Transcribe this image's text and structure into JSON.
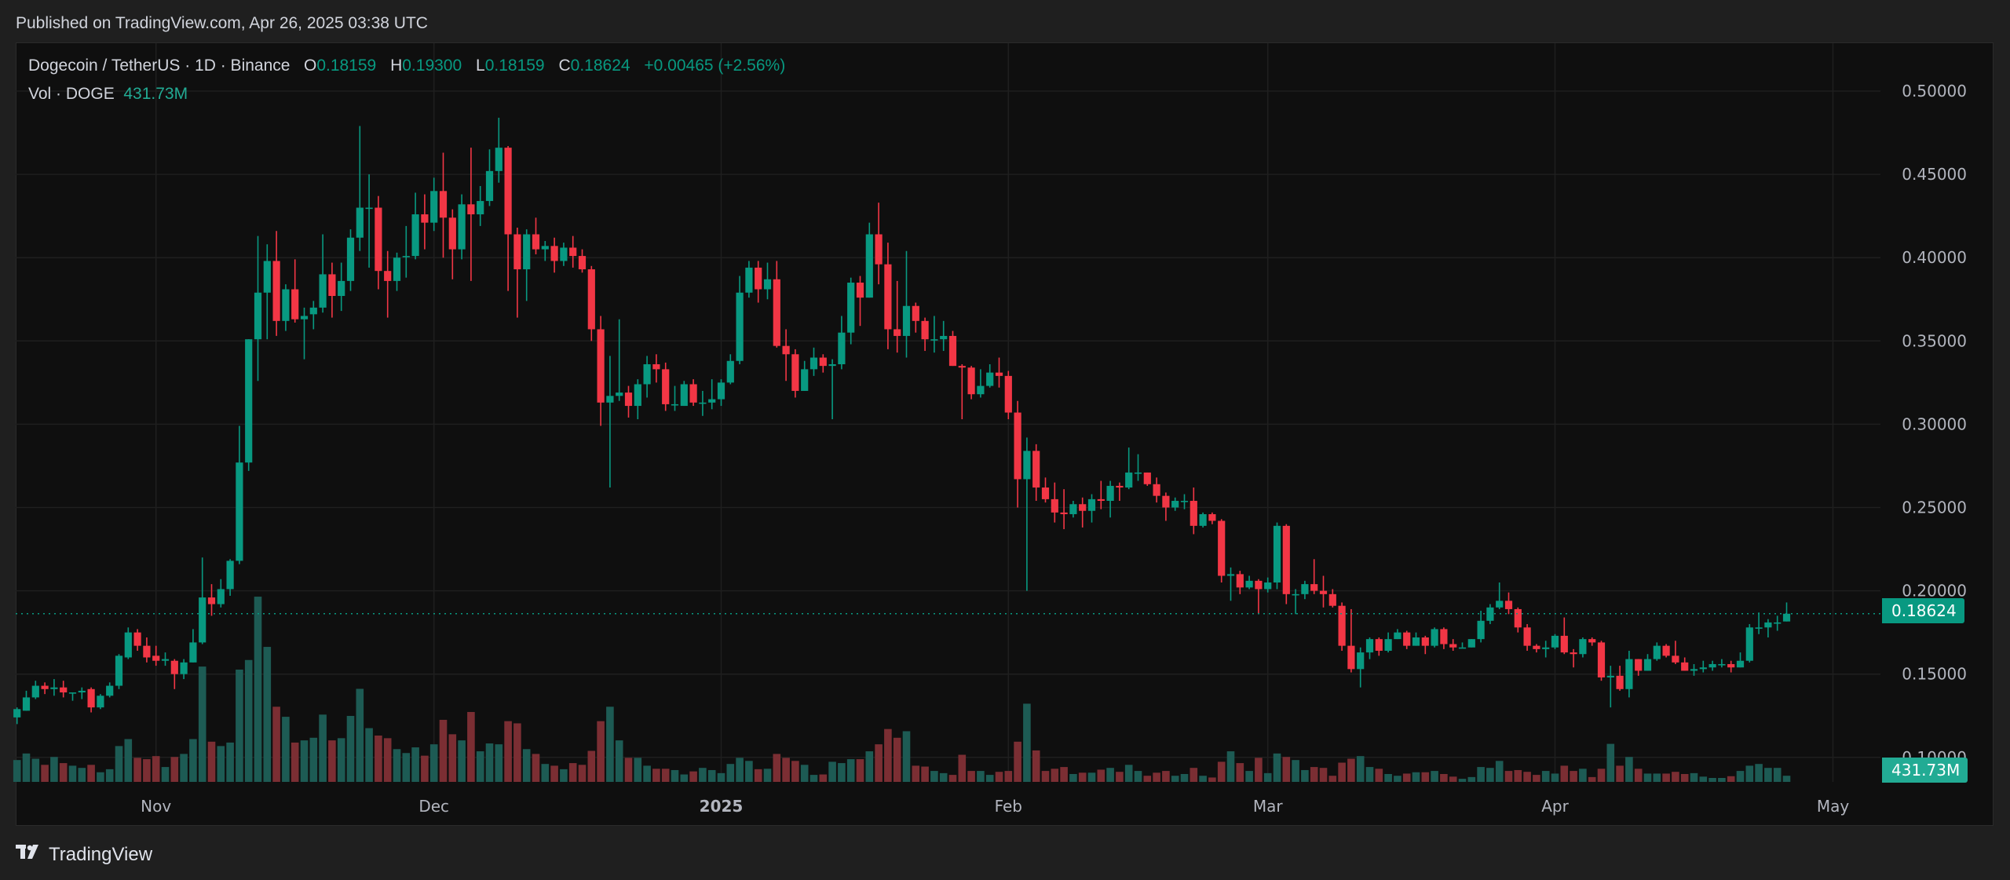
{
  "header": {
    "published": "Published on TradingView.com, Apr 26, 2025 03:38 UTC"
  },
  "legend": {
    "symbol": "Dogecoin / TetherUS · 1D · Binance",
    "o_label": "O",
    "o_value": "0.18159",
    "h_label": "H",
    "h_value": "0.19300",
    "l_label": "L",
    "l_value": "0.18159",
    "c_label": "C",
    "c_value": "0.18624",
    "change": "+0.00465 (+2.56%)",
    "vol_label": "Vol · DOGE",
    "vol_value": "431.73M"
  },
  "badges": {
    "price": "0.18624",
    "volume": "431.73M"
  },
  "footer": {
    "brand": "TradingView",
    "logo_text": "TV"
  },
  "colors": {
    "up": "#089981",
    "down": "#f23645",
    "vol_up": "#1d5b54",
    "vol_down": "#7b2e33",
    "background": "#0f0f0f",
    "grid": "#1f1f1f",
    "last_price_line": "#089981"
  },
  "chart_data": {
    "type": "candlestick",
    "title": "Dogecoin / TetherUS · 1D · Binance",
    "ylim": [
      0.1,
      0.5
    ],
    "grid": true,
    "y_ticks": [
      "0.50000",
      "0.45000",
      "0.40000",
      "0.35000",
      "0.30000",
      "0.25000",
      "0.20000",
      "0.15000",
      "0.10000"
    ],
    "x_ticks": [
      {
        "label": "Nov",
        "index": 15
      },
      {
        "label": "Dec",
        "index": 45
      },
      {
        "label": "2025",
        "index": 76
      },
      {
        "label": "Feb",
        "index": 107
      },
      {
        "label": "Mar",
        "index": 135
      },
      {
        "label": "Apr",
        "index": 166
      },
      {
        "label": "May",
        "index": 196
      }
    ],
    "last_price": 0.18624,
    "ohlc_columns": [
      "open",
      "high",
      "low",
      "close"
    ],
    "ohlc": [
      [
        0.124,
        0.13,
        0.12,
        0.129
      ],
      [
        0.128,
        0.14,
        0.128,
        0.136
      ],
      [
        0.136,
        0.146,
        0.135,
        0.143
      ],
      [
        0.143,
        0.145,
        0.138,
        0.141
      ],
      [
        0.141,
        0.147,
        0.137,
        0.142
      ],
      [
        0.142,
        0.146,
        0.136,
        0.139
      ],
      [
        0.139,
        0.139,
        0.134,
        0.139
      ],
      [
        0.139,
        0.142,
        0.135,
        0.14
      ],
      [
        0.141,
        0.142,
        0.127,
        0.13
      ],
      [
        0.13,
        0.138,
        0.129,
        0.137
      ],
      [
        0.137,
        0.145,
        0.136,
        0.143
      ],
      [
        0.143,
        0.162,
        0.141,
        0.161
      ],
      [
        0.16,
        0.178,
        0.159,
        0.175
      ],
      [
        0.175,
        0.177,
        0.164,
        0.167
      ],
      [
        0.167,
        0.172,
        0.157,
        0.16
      ],
      [
        0.161,
        0.167,
        0.155,
        0.158
      ],
      [
        0.158,
        0.163,
        0.155,
        0.159
      ],
      [
        0.158,
        0.159,
        0.141,
        0.15
      ],
      [
        0.15,
        0.159,
        0.147,
        0.157
      ],
      [
        0.157,
        0.177,
        0.157,
        0.169
      ],
      [
        0.169,
        0.22,
        0.168,
        0.196
      ],
      [
        0.196,
        0.204,
        0.185,
        0.192
      ],
      [
        0.192,
        0.207,
        0.19,
        0.201
      ],
      [
        0.201,
        0.219,
        0.197,
        0.218
      ],
      [
        0.218,
        0.299,
        0.216,
        0.277
      ],
      [
        0.277,
        0.351,
        0.272,
        0.351
      ],
      [
        0.351,
        0.413,
        0.326,
        0.379
      ],
      [
        0.379,
        0.408,
        0.351,
        0.398
      ],
      [
        0.398,
        0.416,
        0.353,
        0.362
      ],
      [
        0.362,
        0.384,
        0.356,
        0.381
      ],
      [
        0.381,
        0.399,
        0.361,
        0.363
      ],
      [
        0.363,
        0.37,
        0.339,
        0.365
      ],
      [
        0.366,
        0.374,
        0.357,
        0.37
      ],
      [
        0.37,
        0.414,
        0.367,
        0.39
      ],
      [
        0.39,
        0.397,
        0.364,
        0.377
      ],
      [
        0.377,
        0.397,
        0.368,
        0.386
      ],
      [
        0.386,
        0.417,
        0.38,
        0.412
      ],
      [
        0.412,
        0.479,
        0.404,
        0.43
      ],
      [
        0.43,
        0.45,
        0.394,
        0.43
      ],
      [
        0.43,
        0.437,
        0.381,
        0.392
      ],
      [
        0.392,
        0.404,
        0.364,
        0.386
      ],
      [
        0.386,
        0.403,
        0.38,
        0.4
      ],
      [
        0.401,
        0.419,
        0.388,
        0.401
      ],
      [
        0.401,
        0.439,
        0.399,
        0.426
      ],
      [
        0.426,
        0.438,
        0.405,
        0.421
      ],
      [
        0.421,
        0.448,
        0.416,
        0.44
      ],
      [
        0.44,
        0.463,
        0.4,
        0.424
      ],
      [
        0.424,
        0.429,
        0.387,
        0.405
      ],
      [
        0.405,
        0.438,
        0.399,
        0.432
      ],
      [
        0.432,
        0.466,
        0.386,
        0.426
      ],
      [
        0.426,
        0.443,
        0.419,
        0.434
      ],
      [
        0.434,
        0.465,
        0.431,
        0.452
      ],
      [
        0.452,
        0.484,
        0.445,
        0.466
      ],
      [
        0.466,
        0.467,
        0.38,
        0.414
      ],
      [
        0.414,
        0.418,
        0.364,
        0.393
      ],
      [
        0.393,
        0.417,
        0.374,
        0.414
      ],
      [
        0.414,
        0.424,
        0.402,
        0.405
      ],
      [
        0.405,
        0.41,
        0.398,
        0.407
      ],
      [
        0.407,
        0.412,
        0.391,
        0.398
      ],
      [
        0.398,
        0.409,
        0.395,
        0.406
      ],
      [
        0.406,
        0.413,
        0.394,
        0.401
      ],
      [
        0.401,
        0.405,
        0.391,
        0.393
      ],
      [
        0.393,
        0.395,
        0.35,
        0.357
      ],
      [
        0.357,
        0.365,
        0.299,
        0.313
      ],
      [
        0.313,
        0.341,
        0.262,
        0.317
      ],
      [
        0.317,
        0.363,
        0.314,
        0.319
      ],
      [
        0.319,
        0.323,
        0.304,
        0.311
      ],
      [
        0.311,
        0.327,
        0.303,
        0.324
      ],
      [
        0.324,
        0.341,
        0.316,
        0.336
      ],
      [
        0.336,
        0.342,
        0.325,
        0.333
      ],
      [
        0.333,
        0.337,
        0.308,
        0.312
      ],
      [
        0.312,
        0.323,
        0.308,
        0.312
      ],
      [
        0.311,
        0.326,
        0.311,
        0.324
      ],
      [
        0.324,
        0.327,
        0.311,
        0.313
      ],
      [
        0.313,
        0.32,
        0.305,
        0.313
      ],
      [
        0.313,
        0.327,
        0.309,
        0.315
      ],
      [
        0.315,
        0.327,
        0.311,
        0.325
      ],
      [
        0.325,
        0.342,
        0.324,
        0.338
      ],
      [
        0.338,
        0.389,
        0.336,
        0.379
      ],
      [
        0.379,
        0.398,
        0.376,
        0.394
      ],
      [
        0.394,
        0.398,
        0.373,
        0.381
      ],
      [
        0.381,
        0.397,
        0.375,
        0.387
      ],
      [
        0.387,
        0.398,
        0.346,
        0.347
      ],
      [
        0.347,
        0.357,
        0.326,
        0.342
      ],
      [
        0.342,
        0.345,
        0.316,
        0.32
      ],
      [
        0.32,
        0.338,
        0.32,
        0.333
      ],
      [
        0.333,
        0.346,
        0.329,
        0.34
      ],
      [
        0.34,
        0.342,
        0.331,
        0.335
      ],
      [
        0.335,
        0.339,
        0.303,
        0.336
      ],
      [
        0.336,
        0.365,
        0.333,
        0.355
      ],
      [
        0.355,
        0.388,
        0.348,
        0.385
      ],
      [
        0.385,
        0.389,
        0.359,
        0.376
      ],
      [
        0.376,
        0.421,
        0.376,
        0.414
      ],
      [
        0.414,
        0.433,
        0.384,
        0.396
      ],
      [
        0.396,
        0.409,
        0.345,
        0.357
      ],
      [
        0.357,
        0.386,
        0.343,
        0.353
      ],
      [
        0.353,
        0.404,
        0.34,
        0.371
      ],
      [
        0.371,
        0.373,
        0.355,
        0.362
      ],
      [
        0.362,
        0.364,
        0.344,
        0.351
      ],
      [
        0.351,
        0.365,
        0.343,
        0.351
      ],
      [
        0.351,
        0.362,
        0.344,
        0.353
      ],
      [
        0.353,
        0.356,
        0.335,
        0.335
      ],
      [
        0.335,
        0.336,
        0.303,
        0.334
      ],
      [
        0.334,
        0.335,
        0.315,
        0.318
      ],
      [
        0.318,
        0.333,
        0.316,
        0.323
      ],
      [
        0.323,
        0.336,
        0.322,
        0.331
      ],
      [
        0.331,
        0.34,
        0.322,
        0.329
      ],
      [
        0.329,
        0.332,
        0.303,
        0.307
      ],
      [
        0.307,
        0.314,
        0.25,
        0.267
      ],
      [
        0.267,
        0.292,
        0.2,
        0.284
      ],
      [
        0.284,
        0.288,
        0.254,
        0.262
      ],
      [
        0.262,
        0.268,
        0.253,
        0.255
      ],
      [
        0.255,
        0.265,
        0.241,
        0.247
      ],
      [
        0.247,
        0.261,
        0.237,
        0.246
      ],
      [
        0.246,
        0.254,
        0.244,
        0.252
      ],
      [
        0.252,
        0.256,
        0.238,
        0.248
      ],
      [
        0.248,
        0.258,
        0.241,
        0.255
      ],
      [
        0.255,
        0.266,
        0.249,
        0.254
      ],
      [
        0.254,
        0.266,
        0.244,
        0.263
      ],
      [
        0.263,
        0.265,
        0.254,
        0.262
      ],
      [
        0.262,
        0.286,
        0.261,
        0.271
      ],
      [
        0.271,
        0.282,
        0.266,
        0.271
      ],
      [
        0.271,
        0.271,
        0.263,
        0.264
      ],
      [
        0.264,
        0.268,
        0.253,
        0.257
      ],
      [
        0.257,
        0.259,
        0.242,
        0.25
      ],
      [
        0.25,
        0.256,
        0.248,
        0.254
      ],
      [
        0.254,
        0.258,
        0.249,
        0.254
      ],
      [
        0.254,
        0.262,
        0.234,
        0.239
      ],
      [
        0.239,
        0.247,
        0.238,
        0.246
      ],
      [
        0.246,
        0.247,
        0.24,
        0.242
      ],
      [
        0.242,
        0.243,
        0.205,
        0.209
      ],
      [
        0.209,
        0.214,
        0.194,
        0.21
      ],
      [
        0.21,
        0.212,
        0.198,
        0.202
      ],
      [
        0.202,
        0.209,
        0.201,
        0.206
      ],
      [
        0.206,
        0.207,
        0.186,
        0.201
      ],
      [
        0.201,
        0.208,
        0.199,
        0.205
      ],
      [
        0.205,
        0.241,
        0.201,
        0.239
      ],
      [
        0.239,
        0.24,
        0.192,
        0.198
      ],
      [
        0.198,
        0.201,
        0.186,
        0.198
      ],
      [
        0.198,
        0.206,
        0.195,
        0.204
      ],
      [
        0.204,
        0.219,
        0.198,
        0.2
      ],
      [
        0.2,
        0.209,
        0.19,
        0.198
      ],
      [
        0.198,
        0.201,
        0.19,
        0.191
      ],
      [
        0.191,
        0.193,
        0.164,
        0.167
      ],
      [
        0.167,
        0.189,
        0.151,
        0.153
      ],
      [
        0.153,
        0.166,
        0.142,
        0.163
      ],
      [
        0.163,
        0.172,
        0.159,
        0.171
      ],
      [
        0.171,
        0.172,
        0.161,
        0.164
      ],
      [
        0.164,
        0.175,
        0.163,
        0.171
      ],
      [
        0.171,
        0.177,
        0.171,
        0.175
      ],
      [
        0.175,
        0.176,
        0.165,
        0.167
      ],
      [
        0.167,
        0.175,
        0.167,
        0.172
      ],
      [
        0.172,
        0.173,
        0.162,
        0.167
      ],
      [
        0.167,
        0.178,
        0.166,
        0.177
      ],
      [
        0.177,
        0.178,
        0.165,
        0.168
      ],
      [
        0.168,
        0.171,
        0.164,
        0.166
      ],
      [
        0.166,
        0.169,
        0.166,
        0.166
      ],
      [
        0.166,
        0.171,
        0.166,
        0.171
      ],
      [
        0.171,
        0.188,
        0.169,
        0.182
      ],
      [
        0.182,
        0.192,
        0.18,
        0.19
      ],
      [
        0.19,
        0.205,
        0.189,
        0.194
      ],
      [
        0.194,
        0.199,
        0.186,
        0.189
      ],
      [
        0.189,
        0.19,
        0.175,
        0.178
      ],
      [
        0.178,
        0.18,
        0.164,
        0.167
      ],
      [
        0.167,
        0.168,
        0.163,
        0.165
      ],
      [
        0.165,
        0.17,
        0.16,
        0.166
      ],
      [
        0.166,
        0.174,
        0.165,
        0.173
      ],
      [
        0.173,
        0.184,
        0.162,
        0.163
      ],
      [
        0.163,
        0.165,
        0.154,
        0.162
      ],
      [
        0.162,
        0.172,
        0.16,
        0.171
      ],
      [
        0.171,
        0.172,
        0.167,
        0.169
      ],
      [
        0.169,
        0.17,
        0.146,
        0.148
      ],
      [
        0.148,
        0.155,
        0.13,
        0.149
      ],
      [
        0.149,
        0.155,
        0.14,
        0.141
      ],
      [
        0.141,
        0.164,
        0.136,
        0.159
      ],
      [
        0.159,
        0.159,
        0.149,
        0.152
      ],
      [
        0.152,
        0.162,
        0.152,
        0.159
      ],
      [
        0.159,
        0.169,
        0.158,
        0.167
      ],
      [
        0.167,
        0.168,
        0.16,
        0.161
      ],
      [
        0.161,
        0.17,
        0.156,
        0.157
      ],
      [
        0.157,
        0.16,
        0.152,
        0.152
      ],
      [
        0.152,
        0.156,
        0.149,
        0.153
      ],
      [
        0.153,
        0.158,
        0.151,
        0.154
      ],
      [
        0.154,
        0.158,
        0.152,
        0.156
      ],
      [
        0.156,
        0.159,
        0.154,
        0.156
      ],
      [
        0.156,
        0.158,
        0.151,
        0.154
      ],
      [
        0.154,
        0.163,
        0.154,
        0.158
      ],
      [
        0.158,
        0.18,
        0.157,
        0.178
      ],
      [
        0.178,
        0.187,
        0.174,
        0.178
      ],
      [
        0.178,
        0.183,
        0.172,
        0.181
      ],
      [
        0.181,
        0.185,
        0.176,
        0.181
      ],
      [
        0.18159,
        0.193,
        0.18159,
        0.18624
      ]
    ],
    "volume_unit": "M DOGE",
    "volume": [
      1540,
      2002,
      1632,
      1201,
      1756,
      1324,
      1140,
      986,
      1201,
      678,
      893,
      2526,
      3018,
      1694,
      1602,
      1817,
      1047,
      1756,
      1971,
      3018,
      8131,
      2834,
      2526,
      2772,
      7916,
      8593,
      13059,
      9517,
      5298,
      4589,
      2772,
      2926,
      3111,
      4743,
      2926,
      3080,
      4651,
      6560,
      3788,
      3265,
      3080,
      2310,
      2033,
      2433,
      1848,
      2649,
      4374,
      3357,
      2926,
      4928,
      2156,
      2710,
      2649,
      4281,
      4127,
      2310,
      1971,
      1263,
      1140,
      893,
      1324,
      1201,
      2187,
      4281,
      5298,
      2926,
      1694,
      1694,
      1140,
      924,
      924,
      832,
      524,
      739,
      986,
      832,
      616,
      1263,
      1694,
      1478,
      893,
      924,
      1971,
      1694,
      1478,
      1201,
      493,
      524,
      1417,
      1324,
      1602,
      1602,
      2156,
      2649,
      3727,
      3111,
      3573,
      1140,
      1078,
      770,
      616,
      493,
      1910,
      770,
      770,
      493,
      708,
      770,
      2834,
      5513,
      2218,
      770,
      924,
      1047,
      554,
      647,
      647,
      862,
      986,
      708,
      1201,
      770,
      431,
      647,
      770,
      431,
      554,
      986,
      431,
      308,
      1417,
      2156,
      1324,
      770,
      1694,
      616,
      2002,
      1756,
      1540,
      832,
      1047,
      986,
      431,
      1355,
      1632,
      1817,
      1047,
      924,
      554,
      431,
      585,
      678,
      678,
      770,
      554,
      370,
      216,
      339,
      1047,
      986,
      1478,
      770,
      832,
      708,
      493,
      770,
      585,
      1140,
      770,
      924,
      339,
      924,
      2680,
      1140,
      1756,
      924,
      585,
      585,
      585,
      708,
      554,
      616,
      370,
      277,
      277,
      400,
      770,
      1140,
      1263,
      986,
      986,
      431.73
    ]
  }
}
